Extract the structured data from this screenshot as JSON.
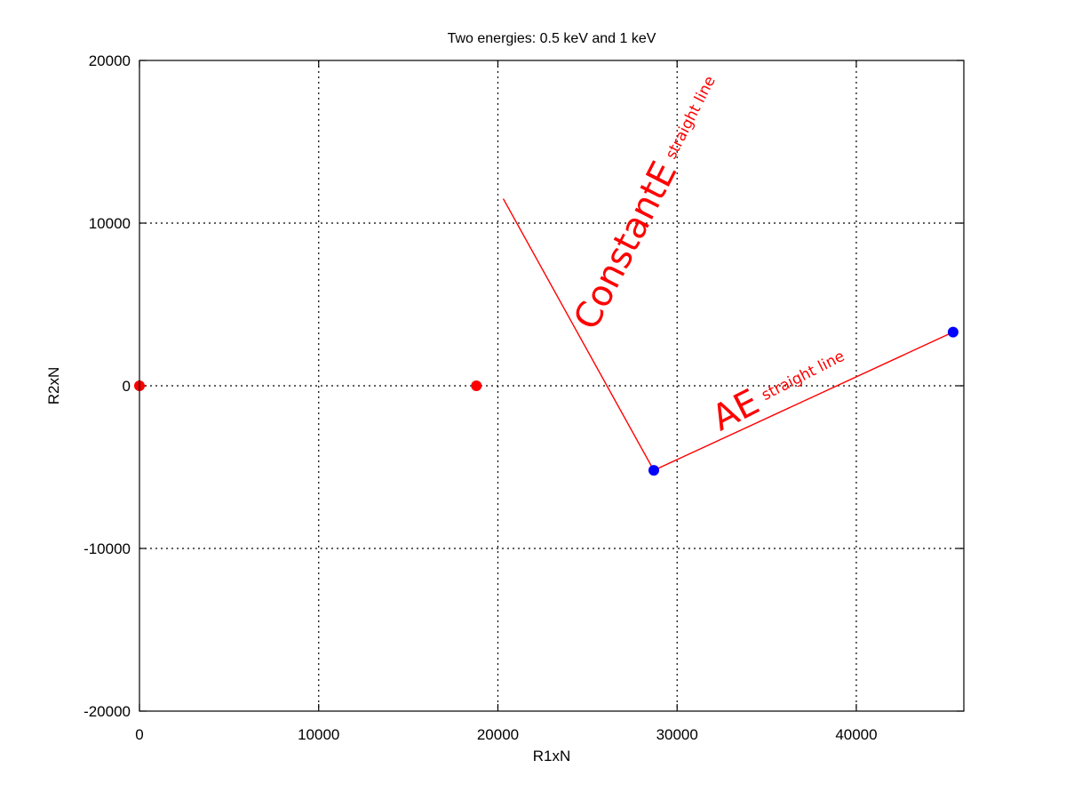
{
  "chart_data": {
    "type": "scatter",
    "title": "Two energies: 0.5 keV and 1 keV",
    "xlabel": "R1xN",
    "ylabel": "R2xN",
    "xlim": [
      0,
      46000
    ],
    "ylim": [
      -20000,
      20000
    ],
    "xticks": [
      0,
      10000,
      20000,
      30000,
      40000
    ],
    "yticks": [
      -20000,
      -10000,
      0,
      10000,
      20000
    ],
    "grid": true,
    "series": [
      {
        "color": "#ff0000",
        "points": [
          {
            "x": 0,
            "y": 0
          },
          {
            "x": 18800,
            "y": 0
          }
        ]
      },
      {
        "color": "#0000ff",
        "points": [
          {
            "x": 28700,
            "y": -5200
          },
          {
            "x": 45400,
            "y": 3300
          }
        ]
      }
    ],
    "lines": [
      {
        "color": "#ff0000",
        "from": {
          "x": 20300,
          "y": 11500
        },
        "to": {
          "x": 28700,
          "y": -5200
        }
      },
      {
        "color": "#ff0000",
        "from": {
          "x": 28700,
          "y": -5200
        },
        "to": {
          "x": 45400,
          "y": 3300
        }
      }
    ],
    "annotations": [
      {
        "big": "ConstantE",
        "small": "straight line",
        "color": "#ff0000",
        "x": 25400,
        "y": 3300,
        "angle": -63
      },
      {
        "big": "AE",
        "small": "straight line",
        "color": "#ff0000",
        "x": 32400,
        "y": -2800,
        "angle": -27
      }
    ]
  }
}
